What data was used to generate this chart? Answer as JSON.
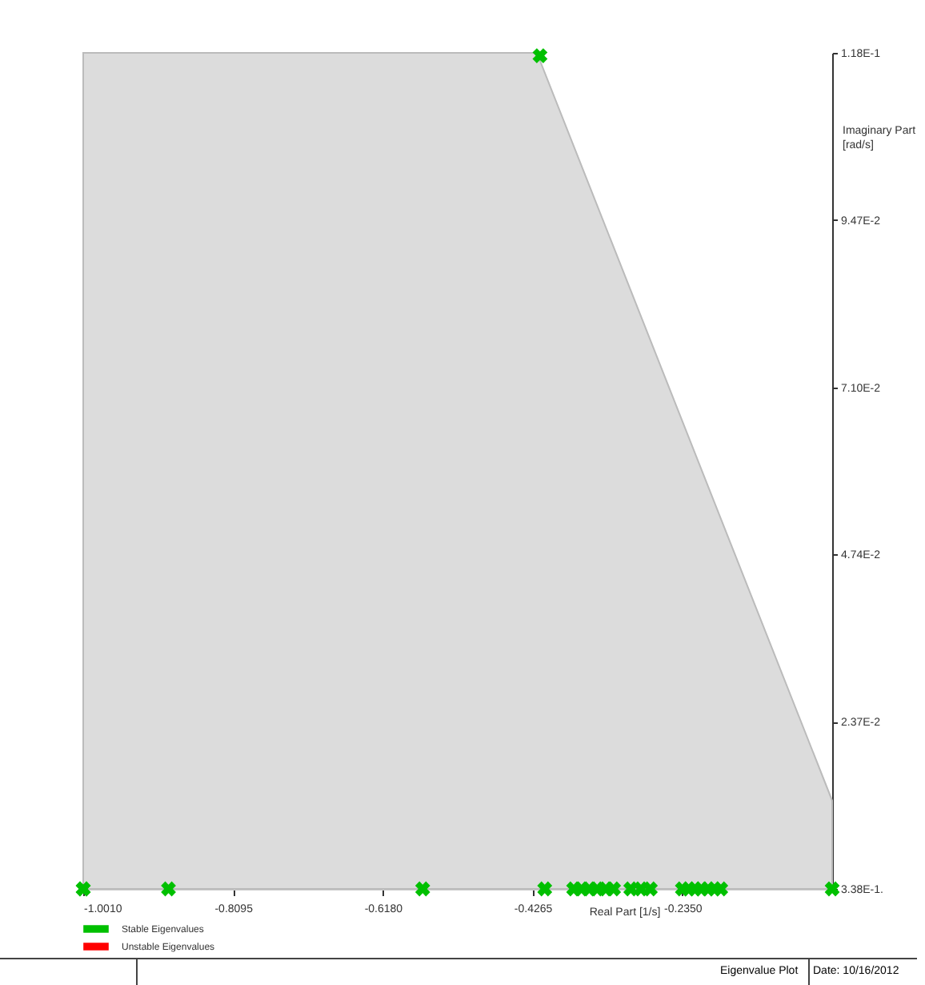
{
  "chart_data": {
    "type": "scatter",
    "xlabel": "Real Part [1/s]",
    "ylabel": "Imaginary Part [rad/s]",
    "annotations": [
      "Eigenvalue Plot",
      "Date: 10/16/2012"
    ],
    "xlim": [
      -1.001,
      -0.0435
    ],
    "ylim": [
      0,
      0.1184
    ],
    "xticks": [
      {
        "value": -1.001,
        "label": "-1.0010"
      },
      {
        "value": -0.8095,
        "label": "-0.8095"
      },
      {
        "value": -0.618,
        "label": "-0.6180"
      },
      {
        "value": -0.4265,
        "label": "-0.4265"
      },
      {
        "value": -0.235,
        "label": "-0.2350"
      }
    ],
    "yticks": [
      {
        "value": 0,
        "label": "3.38E-1."
      },
      {
        "value": 0.0237,
        "label": "2.37E-2"
      },
      {
        "value": 0.0474,
        "label": "4.74E-2"
      },
      {
        "value": 0.071,
        "label": "7.10E-2"
      },
      {
        "value": 0.0947,
        "label": "9.47E-2"
      },
      {
        "value": 0.1184,
        "label": "1.18E-1"
      }
    ],
    "grid": false,
    "legend": "bottom left",
    "series": [
      {
        "type": "area",
        "color": "#dcdcdc",
        "x": [
          -1.001,
          -0.421,
          -0.0435
        ],
        "values": [
          0.1184,
          0.1184,
          0.0125
        ]
      },
      {
        "name": "Stable Eigenvalues",
        "color": "#00c000",
        "marker": "cross",
        "x": [
          -1.001,
          -1.001,
          -0.892,
          -0.567,
          -0.411,
          -0.417,
          -0.374,
          -0.364,
          -0.354,
          -0.344,
          -0.333,
          -0.323,
          -0.301,
          -0.288,
          -0.276,
          -0.235,
          -0.227,
          -0.219,
          -0.211,
          -0.202,
          -0.194,
          -0.186,
          -0.0435
        ],
        "values": [
          0,
          0,
          0,
          0,
          0,
          0.118,
          0,
          0,
          0,
          0,
          0,
          0,
          0,
          0,
          0,
          0,
          0,
          0,
          0,
          0,
          0,
          0,
          0
        ]
      },
      {
        "name": "Unstable Eigenvalues",
        "color": "#ff0000"
      }
    ]
  }
}
